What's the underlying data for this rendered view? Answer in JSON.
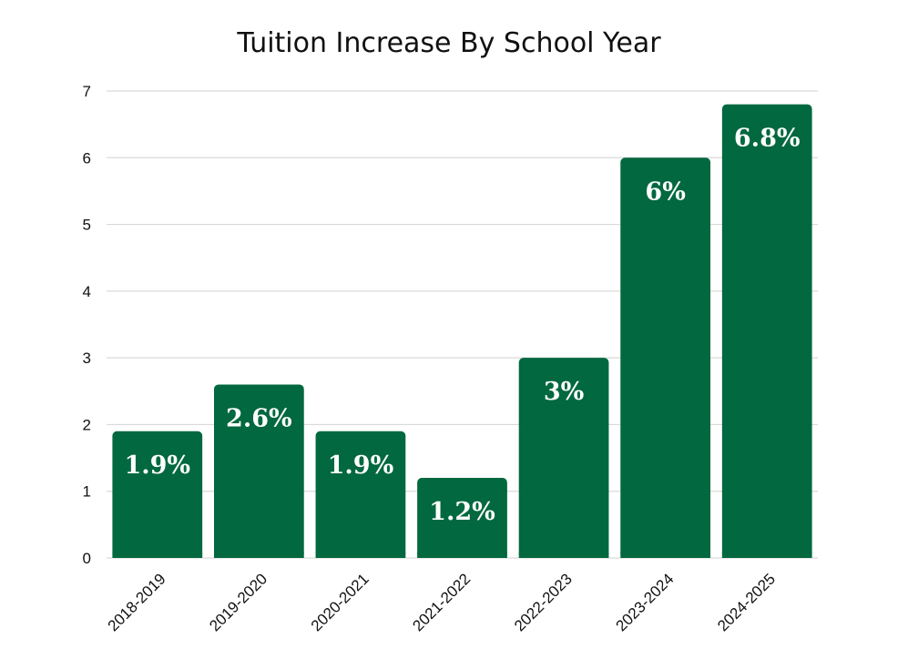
{
  "chart_data": {
    "type": "bar",
    "title": "Tuition Increase By School Year",
    "xlabel": "",
    "ylabel": "",
    "categories": [
      "2018-2019",
      "2019-2020",
      "2020-2021",
      "2021-2022",
      "2022-2023",
      "2023-2024",
      "2024-2025"
    ],
    "values": [
      1.9,
      2.6,
      1.9,
      1.2,
      3,
      6,
      6.8
    ],
    "data_labels": [
      "1.9%",
      "2.6%",
      "1.9%",
      "1.2%",
      "3%",
      "6%",
      "6.8%"
    ],
    "ylim": [
      0,
      7
    ],
    "yticks": [
      "0",
      "1",
      "2",
      "3",
      "4",
      "5",
      "6",
      "7"
    ],
    "grid": true,
    "legend": "none",
    "colors": {
      "bar": "#02683f",
      "label": "#ffffff",
      "grid": "#d9d9d9"
    }
  }
}
